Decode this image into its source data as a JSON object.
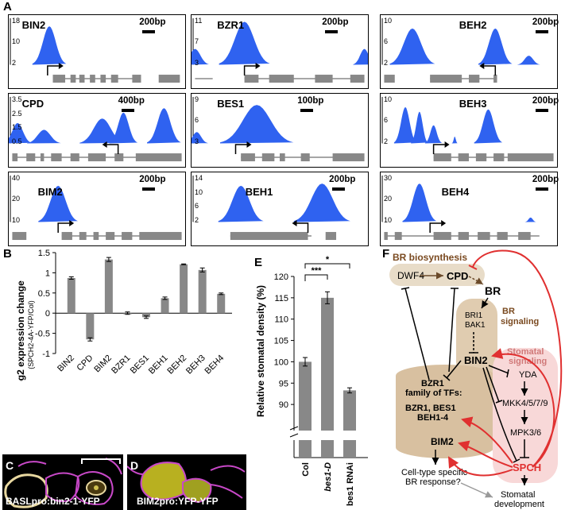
{
  "panel_letters": {
    "a": "A",
    "b": "B",
    "c": "C",
    "d": "D",
    "e": "E",
    "f": "F"
  },
  "tracks": [
    {
      "gene": "BIN2",
      "scale": "200bp",
      "yticks": [
        "18",
        "10",
        "2"
      ]
    },
    {
      "gene": "BZR1",
      "scale": "200bp",
      "yticks": [
        "11",
        "7",
        "3"
      ]
    },
    {
      "gene": "BEH2",
      "scale": "200bp",
      "yticks": [
        "10",
        "6",
        "2"
      ]
    },
    {
      "gene": "CPD",
      "scale": "400bp",
      "yticks": [
        "3.5",
        "2.5",
        "1.5",
        "0.5"
      ]
    },
    {
      "gene": "BES1",
      "scale": "100bp",
      "yticks": [
        "9",
        "6",
        "3"
      ]
    },
    {
      "gene": "BEH3",
      "scale": "200bp",
      "yticks": [
        "10",
        "6",
        "2"
      ]
    },
    {
      "gene": "BIM2",
      "scale": "200bp",
      "yticks": [
        "40",
        "20",
        "10"
      ]
    },
    {
      "gene": "BEH1",
      "scale": "200bp",
      "yticks": [
        "14",
        "10",
        "6",
        "2"
      ]
    },
    {
      "gene": "BEH4",
      "scale": "200bp",
      "yticks": [
        "30",
        "20",
        "10"
      ]
    }
  ],
  "chart_data": [
    {
      "type": "bar",
      "panel": "B",
      "categories": [
        "BIN2",
        "CPD",
        "BIM2",
        "BZR1",
        "BES1",
        "BEH1",
        "BEH2",
        "BEH3",
        "BEH4"
      ],
      "values": [
        0.87,
        -0.65,
        1.33,
        0.0,
        -0.1,
        0.37,
        1.21,
        1.07,
        0.48
      ],
      "errors": [
        0.03,
        0.04,
        0.05,
        0.03,
        0.03,
        0.03,
        0.01,
        0.05,
        0.02
      ],
      "ylabel": "log2 expression change",
      "ylabel_sub": "(SPCH2-4A-YFP/Col)",
      "ylim": [
        -1,
        1.5
      ],
      "yticks": [
        "1.5",
        "1",
        "0.5",
        "0",
        "-0.5",
        "-1"
      ],
      "color": "#888888"
    },
    {
      "type": "bar",
      "panel": "E",
      "categories": [
        "Col",
        "bes1-D",
        "bes1 RNAi"
      ],
      "values": [
        100,
        115,
        93.3
      ],
      "errors": [
        1.0,
        1.4,
        0.6
      ],
      "ylabel": "Relative stomatal density (%)",
      "ylim": [
        85,
        120
      ],
      "yticks": [
        "120",
        "115",
        "110",
        "105",
        "100",
        "95",
        "90"
      ],
      "significance": [
        "***",
        "*"
      ],
      "color": "#888888"
    }
  ],
  "micrographs": {
    "c_label": "BASLpro:bin2-1-YFP",
    "d_label": "BIM2pro:YFP-YFP"
  },
  "diagram": {
    "br_biosynthesis": "BR biosynthesis",
    "dwf4": "DWF4",
    "cpd": "CPD",
    "br": "BR",
    "bri1": "BRI1",
    "bak1": "BAK1",
    "br_signaling_1": "BR",
    "br_signaling_2": "signaling",
    "stomatal_signaling_1": "Stomatal",
    "stomatal_signaling_2": "signaling",
    "bin2": "BIN2",
    "yda": "YDA",
    "mkk": "MKK4/5/7/9",
    "mpk": "MPK3/6",
    "spch": "SPCH",
    "bzr1_family_1": "BZR1",
    "bzr1_family_2": "family of TFs:",
    "bzr1_family_3": "BZR1, BES1",
    "bzr1_family_4": "BEH1-4",
    "bim2": "BIM2",
    "celltype_1": "Cell-type specific",
    "celltype_2": "BR response?",
    "stomatal_dev_1": "Stomatal",
    "stomatal_dev_2": "development"
  }
}
